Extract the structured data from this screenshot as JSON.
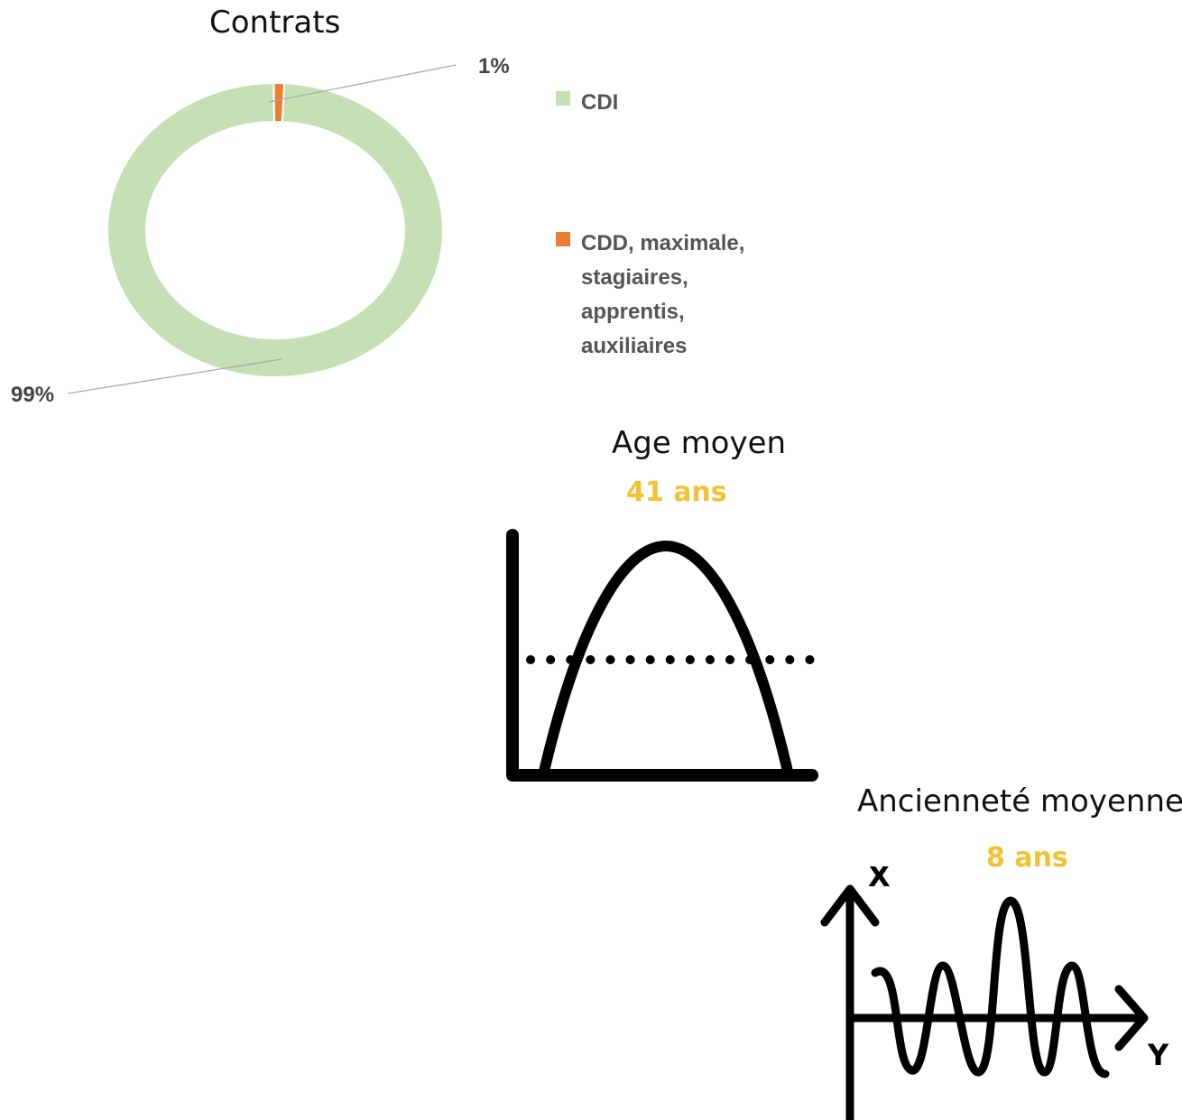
{
  "chart_data": [
    {
      "type": "pie",
      "title": "Contrats",
      "categories": [
        "CDI",
        "CDD, maximale, stagiaires, apprentis, auxiliaires"
      ],
      "values": [
        99,
        1
      ],
      "value_labels": [
        "99%",
        "1%"
      ],
      "colors": [
        "#c5e0b4",
        "#ed7d31"
      ],
      "legend_placement": "right"
    }
  ],
  "contrats": {
    "title": "Contrats",
    "label_cdi": "99%",
    "label_other": "1%",
    "legend": {
      "cdi": "CDI",
      "other_lines": [
        "CDD, maximale,",
        "stagiaires,",
        "apprentis,",
        "auxiliaires"
      ]
    }
  },
  "age": {
    "title": "Age moyen",
    "value": "41 ans",
    "icon": "bell-curve-icon"
  },
  "anciennete": {
    "title": "Ancienneté moyenne",
    "value": "8 ans",
    "icon": "wave-graph-icon",
    "axis_x": "X",
    "axis_y": "Y"
  },
  "colors": {
    "accent": "#f1c232",
    "cdi": "#c5e0b4",
    "other": "#ed7d31"
  }
}
